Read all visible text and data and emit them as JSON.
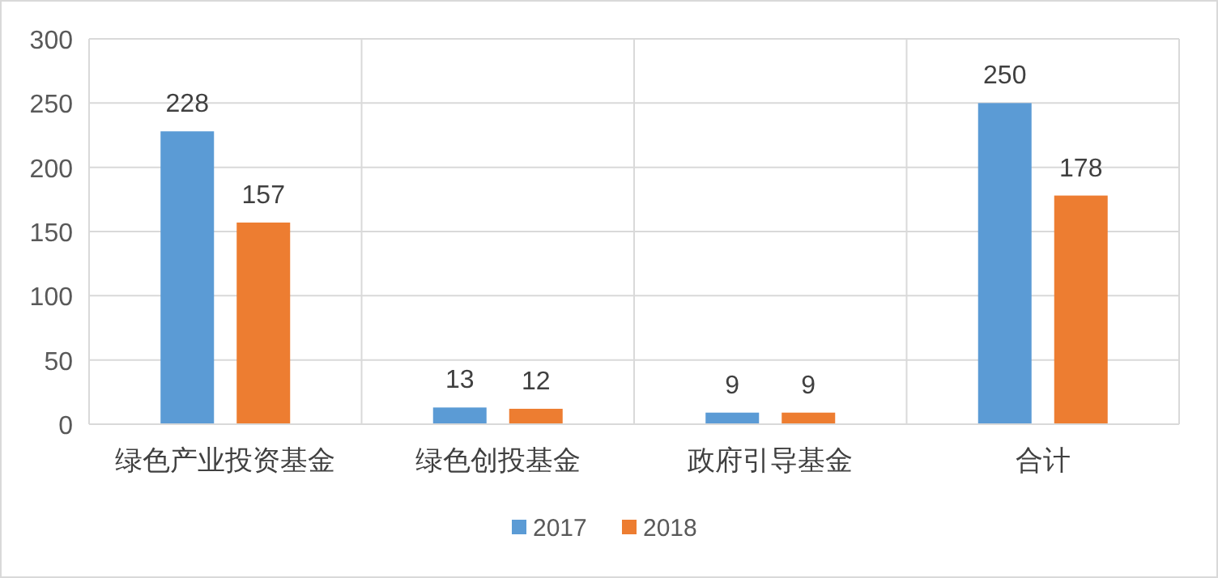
{
  "chart_data": {
    "type": "bar",
    "categories": [
      "绿色产业投资基金",
      "绿色创投基金",
      "政府引导基金",
      "合计"
    ],
    "series": [
      {
        "name": "2017",
        "color": "#5b9bd5",
        "values": [
          228,
          13,
          9,
          250
        ]
      },
      {
        "name": "2018",
        "color": "#ed7d31",
        "values": [
          157,
          12,
          9,
          178
        ]
      }
    ],
    "ylim": [
      0,
      300
    ],
    "yticks": [
      0,
      50,
      100,
      150,
      200,
      250,
      300
    ],
    "grid": true,
    "legend": "bottom",
    "data_labels": true
  }
}
